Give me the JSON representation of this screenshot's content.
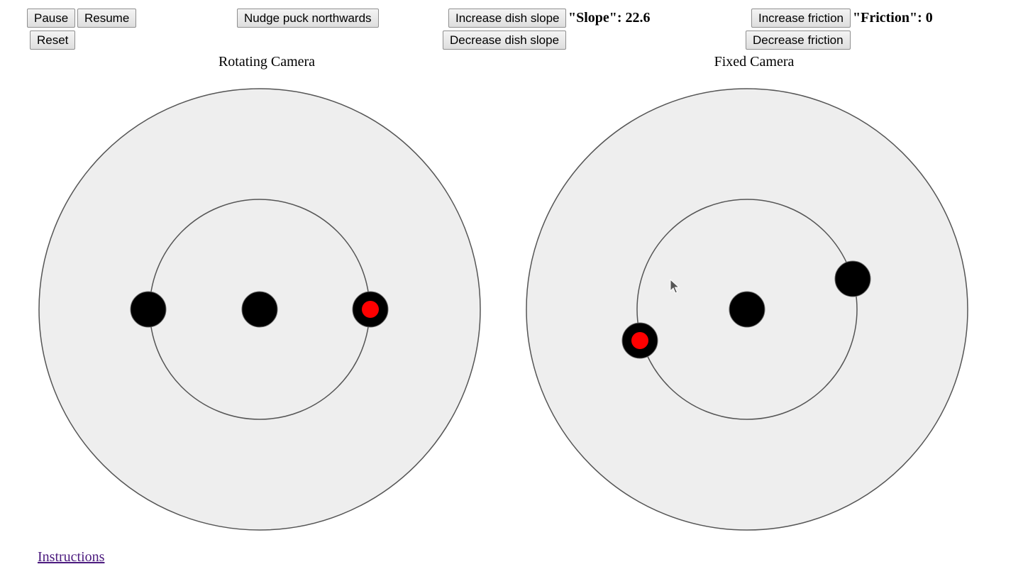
{
  "toolbar": {
    "pause_label": "Pause",
    "resume_label": "Resume",
    "reset_label": "Reset",
    "nudge_label": "Nudge puck northwards",
    "increase_slope_label": "Increase dish slope",
    "decrease_slope_label": "Decrease dish slope",
    "increase_friction_label": "Increase friction",
    "decrease_friction_label": "Decrease friction"
  },
  "readouts": {
    "slope": "\"Slope\": 22.6",
    "friction": "\"Friction\": 0"
  },
  "cameras": {
    "rotating_title": "Rotating Camera",
    "fixed_title": "Fixed Camera"
  },
  "footer": {
    "instructions_link": "Instructions"
  },
  "colors": {
    "dish_fill": "#eeeeee",
    "dish_stroke": "#555555",
    "puck": "#000000",
    "puck_marker": "#ff0000",
    "link": "#4b1a7e"
  }
}
